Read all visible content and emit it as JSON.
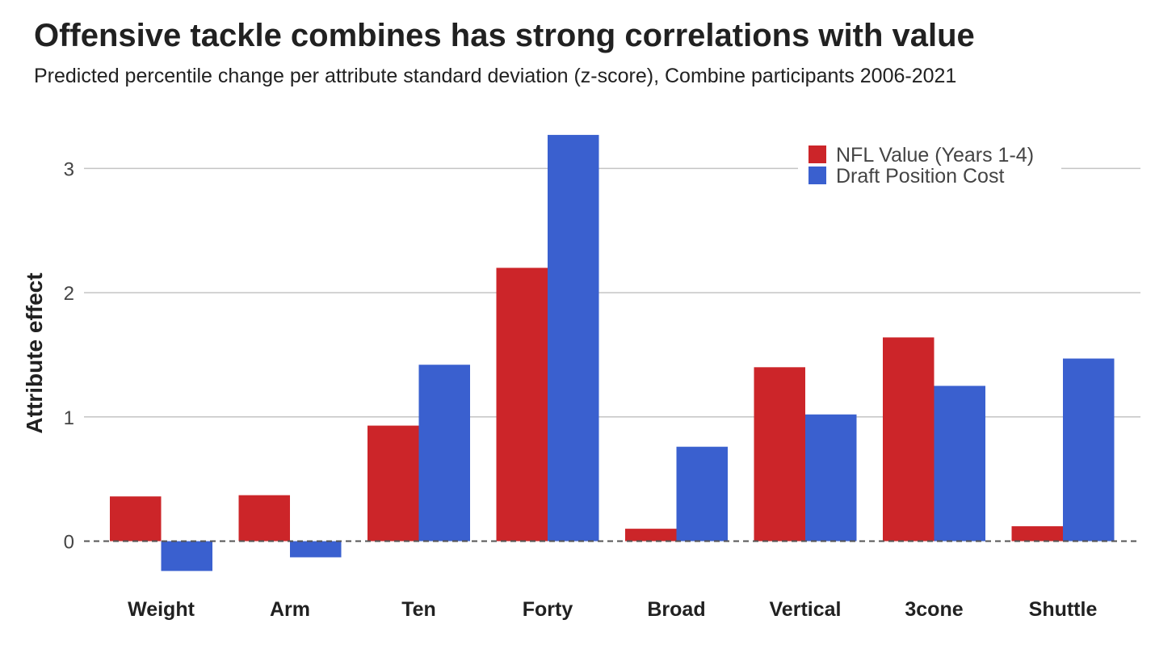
{
  "chart_data": {
    "type": "bar",
    "title": "Offensive tackle combines has strong correlations with value",
    "subtitle": "Predicted percentile change per attribute standard deviation (z-score), Combine participants 2006-2021",
    "xlabel": "",
    "ylabel": "Attribute effect",
    "ylim": [
      -0.3,
      3.4
    ],
    "yticks": [
      0,
      1,
      2,
      3
    ],
    "grid": true,
    "legend_position": "top-right",
    "categories": [
      "Weight",
      "Arm",
      "Ten",
      "Forty",
      "Broad",
      "Vertical",
      "3cone",
      "Shuttle"
    ],
    "series": [
      {
        "name": "NFL Value (Years 1-4)",
        "color": "#cc2529",
        "values": [
          0.36,
          0.37,
          0.93,
          2.2,
          0.1,
          1.4,
          1.64,
          0.12
        ]
      },
      {
        "name": "Draft Position Cost",
        "color": "#3a60cf",
        "values": [
          -0.24,
          -0.13,
          1.42,
          3.27,
          0.76,
          1.02,
          1.25,
          1.47
        ]
      }
    ]
  }
}
